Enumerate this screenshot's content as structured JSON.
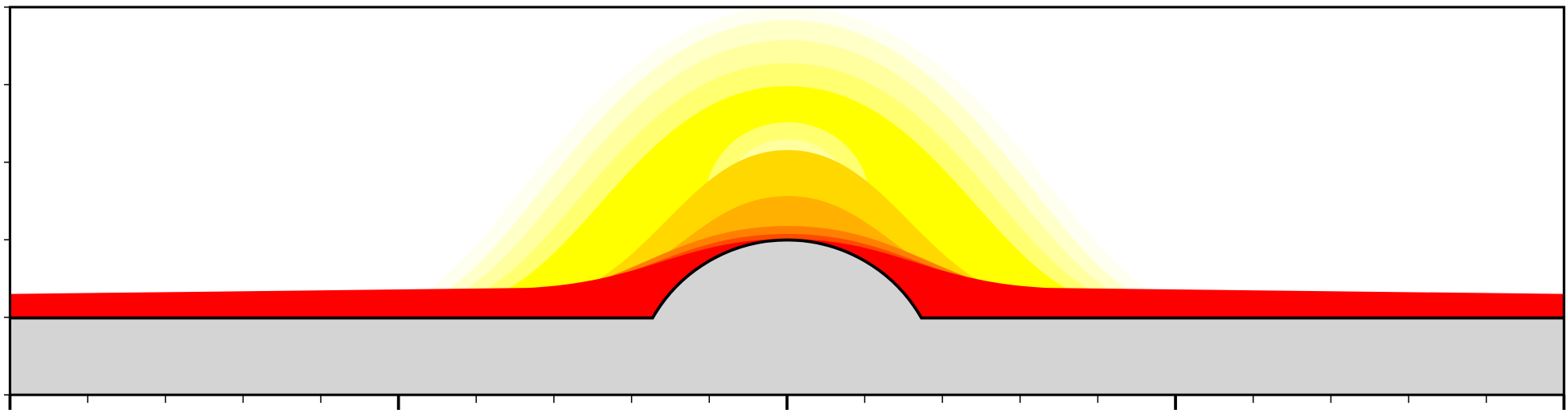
{
  "chart_data": {
    "type": "contour",
    "colors": [
      "#fffff0",
      "#ffffc8",
      "#ffffa0",
      "#ffff70",
      "#ffff00",
      "#ffd800",
      "#ffb000",
      "#ff8000",
      "#ff4a00",
      "#ff0000"
    ],
    "core_colors": [
      "#ffff70",
      "#ffffa0",
      "#ffffc8",
      "#ffffe6",
      "#ffffff"
    ],
    "solid_color": "#d3d4d3"
  }
}
